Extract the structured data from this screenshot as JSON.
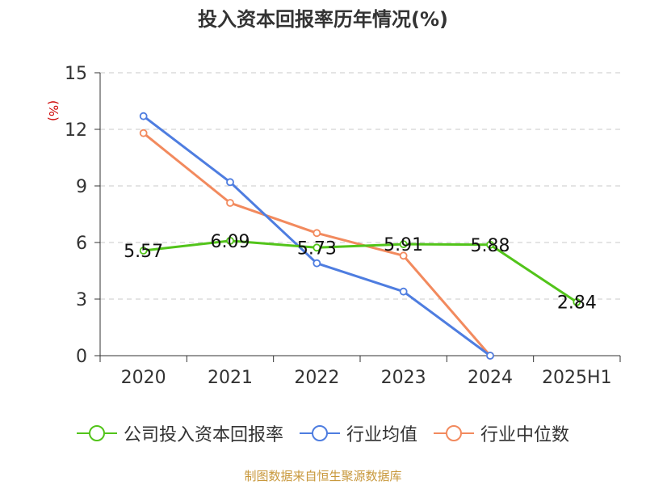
{
  "title": "投入资本回报率历年情况(%)",
  "unit_label": "(%)",
  "source": "制图数据来自恒生聚源数据库",
  "colors": {
    "company": "#52c41a",
    "industry_avg": "#4e7de0",
    "industry_median": "#f28a5e",
    "grid": "#c8c8c8",
    "axis": "#333333",
    "unit": "#cc0000",
    "source": "#c8983c"
  },
  "chart_data": {
    "type": "line",
    "title": "投入资本回报率历年情况(%)",
    "ylabel": "(%)",
    "categories": [
      "2020",
      "2021",
      "2022",
      "2023",
      "2024",
      "2025H1"
    ],
    "ylim": [
      0,
      15
    ],
    "yticks": [
      0,
      3,
      6,
      9,
      12,
      15
    ],
    "grid": true,
    "legend_position": "bottom",
    "series": [
      {
        "name": "公司投入资本回报率",
        "values": [
          5.57,
          6.09,
          5.73,
          5.91,
          5.88,
          2.84
        ],
        "labels": [
          "5.57",
          "6.09",
          "5.73",
          "5.91",
          "5.88",
          "2.84"
        ]
      },
      {
        "name": "行业均值",
        "values": [
          12.7,
          9.2,
          4.9,
          3.4,
          0.0,
          null
        ]
      },
      {
        "name": "行业中位数",
        "values": [
          11.8,
          8.1,
          6.5,
          5.3,
          0.0,
          null
        ]
      }
    ]
  }
}
